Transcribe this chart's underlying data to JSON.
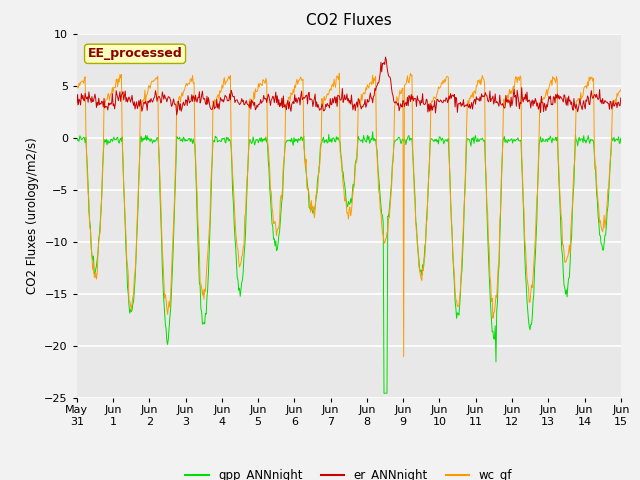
{
  "title": "CO2 Fluxes",
  "ylabel": "CO2 Fluxes (urology/m2/s)",
  "ylim": [
    -25,
    10
  ],
  "annotation": "EE_processed",
  "bg_color": "#f2f2f2",
  "plot_bg_color": "#e8e8e8",
  "grid_color": "#ffffff",
  "series_colors": {
    "gpp": "#00dd00",
    "er": "#cc0000",
    "wc": "#ff9900"
  },
  "legend_labels": [
    "gpp_ANNnight",
    "er_ANNnight",
    "wc_gf"
  ],
  "xtick_labels": [
    "May\n31",
    "Jun\n1",
    "Jun\n2",
    "Jun\n3",
    "Jun\n4",
    "Jun\n5",
    "Jun\n6",
    "Jun\n7",
    "Jun\n8",
    "Jun\n9",
    "Jun\n10",
    "Jun\n11",
    "Jun\n12",
    "Jun\n13",
    "Jun\n14",
    "Jun\n15"
  ],
  "n_days": 15,
  "pts_per_day": 48,
  "seed": 12345,
  "linewidth": 0.7
}
